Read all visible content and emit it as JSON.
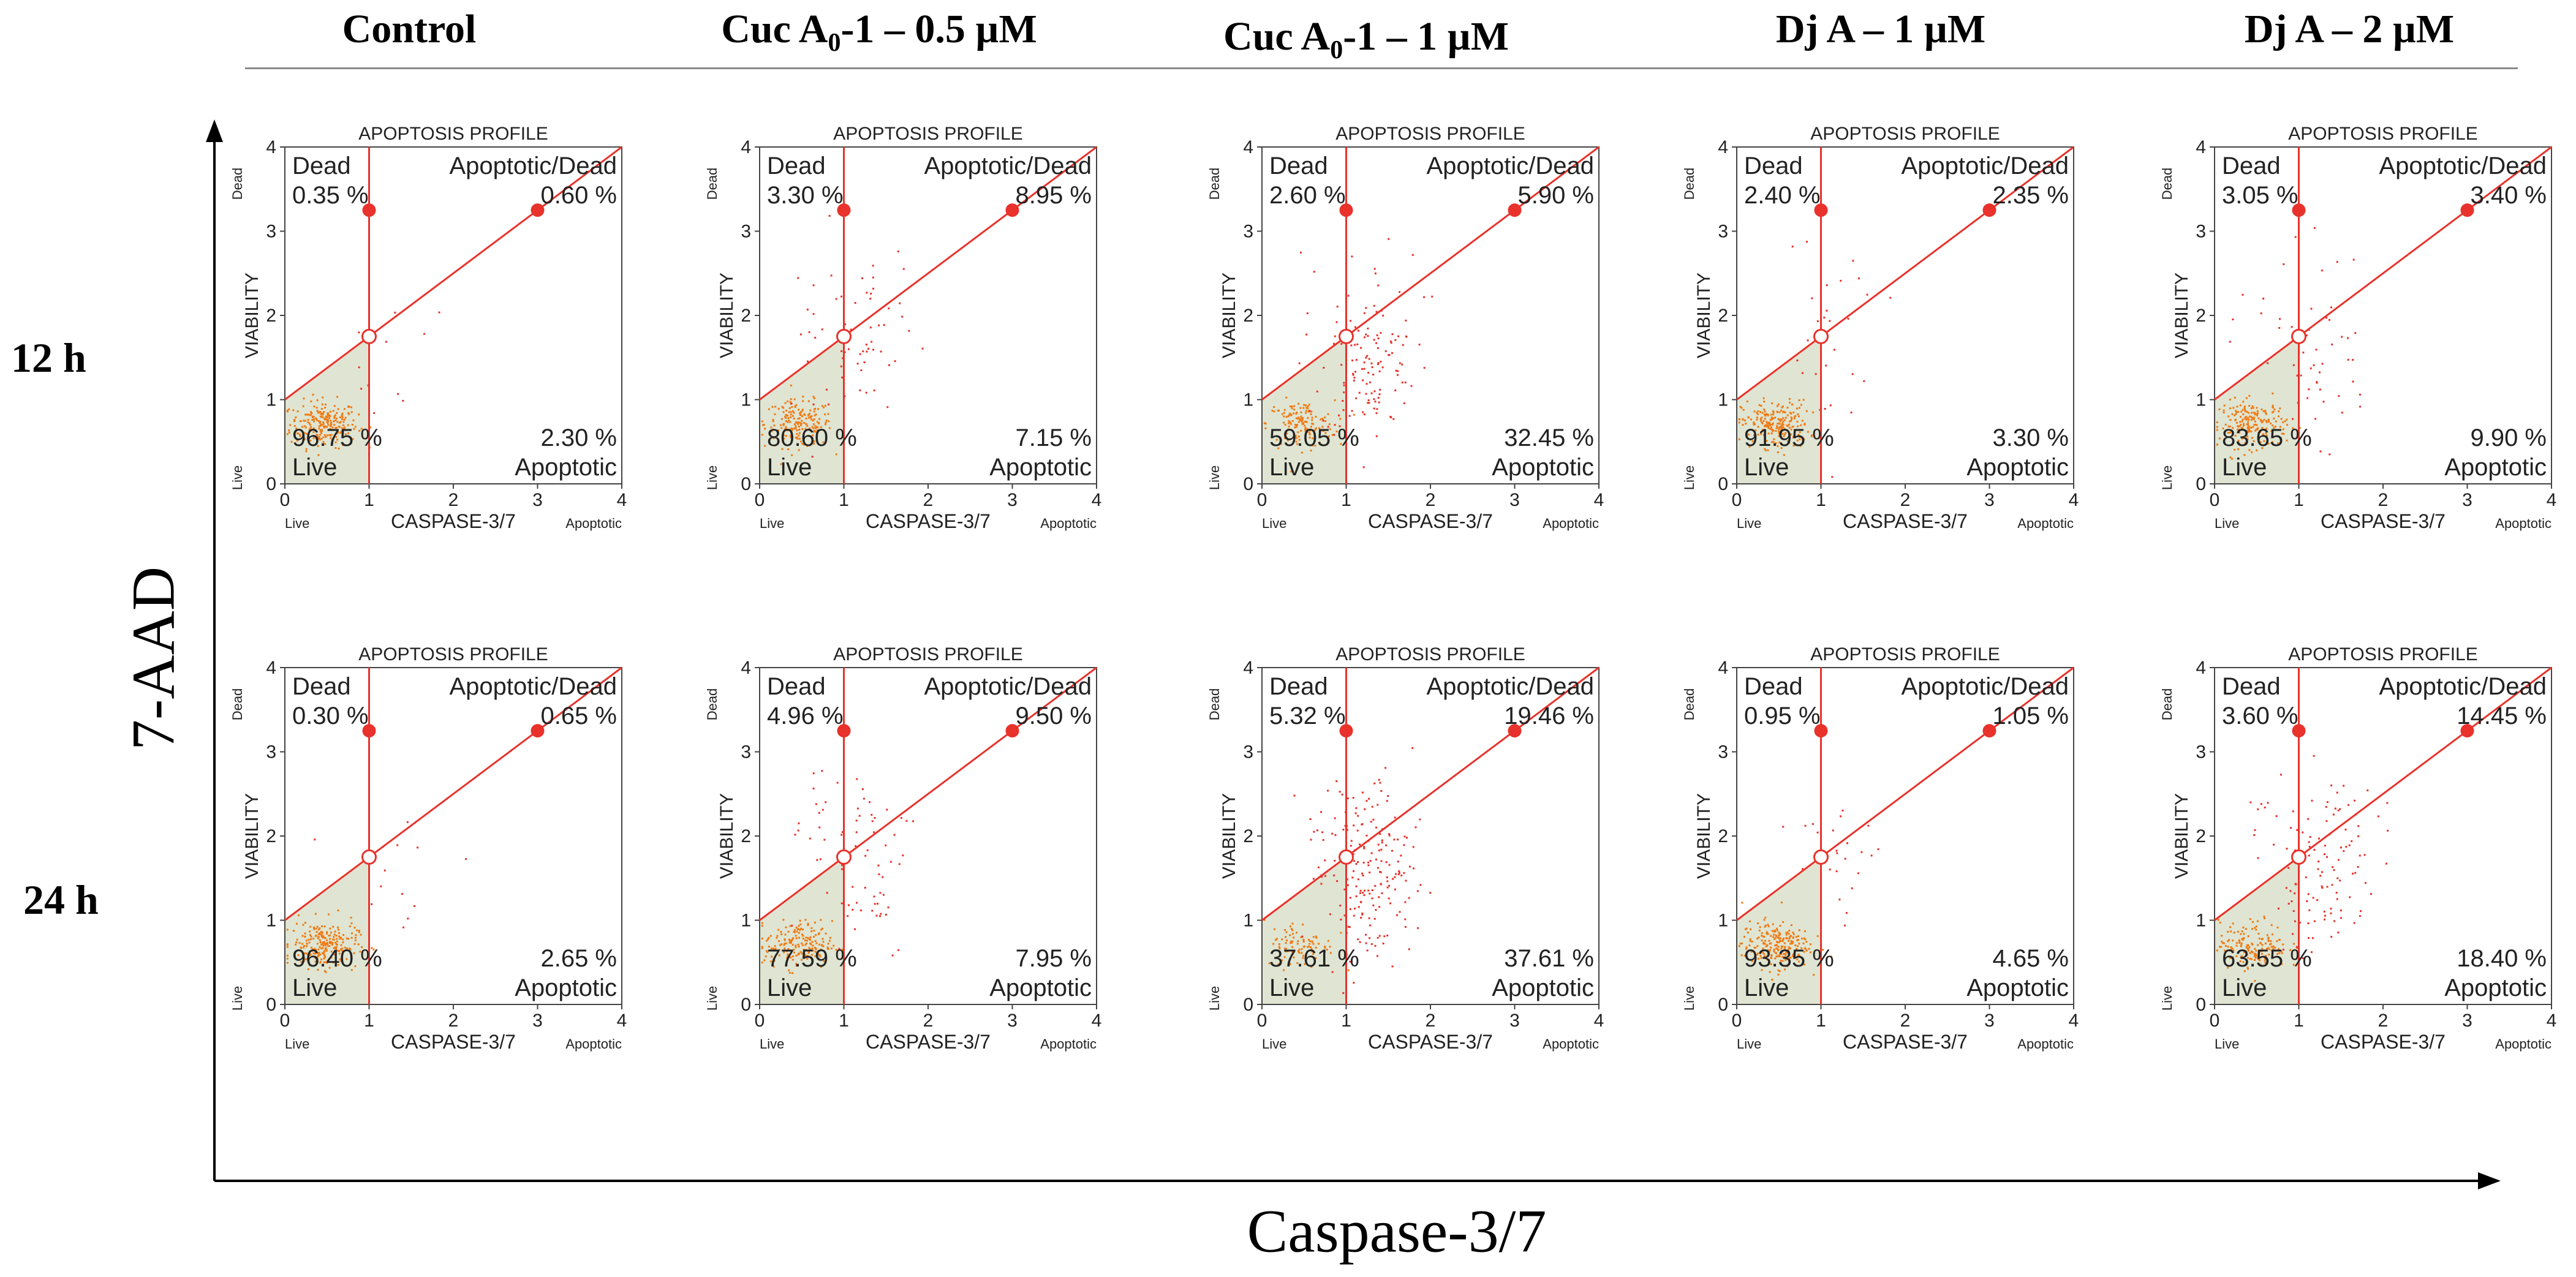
{
  "header": {
    "columns": [
      {
        "main": "Control",
        "sub": "",
        "rest": ""
      },
      {
        "main": "Cuc A",
        "sub": "0",
        "rest": "-1 – 0.5 µM"
      },
      {
        "main": "Cuc A",
        "sub": "0",
        "rest": "-1 – 1 µM"
      },
      {
        "main": "Dj  A – 1 µM",
        "sub": "",
        "rest": ""
      },
      {
        "main": "Dj  A – 2 µM",
        "sub": "",
        "rest": ""
      }
    ]
  },
  "rows": [
    "12 h",
    "24 h"
  ],
  "axis_titles": {
    "y": "7-AAD",
    "x": "Caspase-3/7"
  },
  "colors": {
    "gate_line": "#e8322b",
    "events_live": "#f07a14",
    "events_other": "#e8322b",
    "live_fill": "#dfe5d2"
  },
  "chart_data": {
    "type": "scatter",
    "plot_title": "APOPTOSIS PROFILE",
    "xlabel": "CASPASE-3/7",
    "ylabel": "VIABILITY",
    "x_min_label": "Live",
    "x_max_label": "Apoptotic",
    "y_min_label": "Live",
    "y_max_label": "Dead",
    "xlim": [
      0,
      4
    ],
    "ylim": [
      0,
      4
    ],
    "xticks": [
      "0",
      "1",
      "2",
      "3",
      "4"
    ],
    "yticks": [
      "0",
      "1",
      "2",
      "3",
      "4"
    ],
    "quadrant_labels": {
      "dead": "Dead",
      "apoptotic_dead": "Apoptotic/Dead",
      "live": "Live",
      "apoptotic": "Apoptotic"
    },
    "gate": {
      "x_cut": 1,
      "diagonal_from": [
        0,
        1
      ],
      "diagonal_to": [
        3,
        3.25
      ],
      "markers": [
        [
          1,
          3.25
        ],
        [
          3,
          3.25
        ]
      ],
      "center": [
        1,
        1.75
      ]
    },
    "panels": [
      {
        "row": "12 h",
        "column": "Control",
        "dead": "0.35 %",
        "apoptotic_dead": "0.60 %",
        "live": "96.75 %",
        "apoptotic": "2.30 %"
      },
      {
        "row": "12 h",
        "column": "Cuc A0-1 – 0.5 µM",
        "dead": "3.30 %",
        "apoptotic_dead": "8.95 %",
        "live": "80.60 %",
        "apoptotic": "7.15 %"
      },
      {
        "row": "12 h",
        "column": "Cuc A0-1 – 1 µM",
        "dead": "2.60 %",
        "apoptotic_dead": "5.90 %",
        "live": "59.05 %",
        "apoptotic": "32.45 %"
      },
      {
        "row": "12 h",
        "column": "Dj A – 1 µM",
        "dead": "2.40 %",
        "apoptotic_dead": "2.35 %",
        "live": "91.95 %",
        "apoptotic": "3.30 %"
      },
      {
        "row": "12 h",
        "column": "Dj A – 2 µM",
        "dead": "3.05 %",
        "apoptotic_dead": "3.40 %",
        "live": "83.65 %",
        "apoptotic": "9.90 %"
      },
      {
        "row": "24 h",
        "column": "Control",
        "dead": "0.30 %",
        "apoptotic_dead": "0.65 %",
        "live": "96.40 %",
        "apoptotic": "2.65 %"
      },
      {
        "row": "24 h",
        "column": "Cuc A0-1 – 0.5 µM",
        "dead": "4.96 %",
        "apoptotic_dead": "9.50 %",
        "live": "77.59 %",
        "apoptotic": "7.95 %"
      },
      {
        "row": "24 h",
        "column": "Cuc A0-1 – 1 µM",
        "dead": "5.32 %",
        "apoptotic_dead": "19.46 %",
        "live": "37.61 %",
        "apoptotic": "37.61 %"
      },
      {
        "row": "24 h",
        "column": "Dj A – 1 µM",
        "dead": "0.95 %",
        "apoptotic_dead": "1.05 %",
        "live": "93.35 %",
        "apoptotic": "4.65 %"
      },
      {
        "row": "24 h",
        "column": "Dj A – 2 µM",
        "dead": "3.60 %",
        "apoptotic_dead": "14.45 %",
        "live": "63.55 %",
        "apoptotic": "18.40 %"
      }
    ]
  }
}
